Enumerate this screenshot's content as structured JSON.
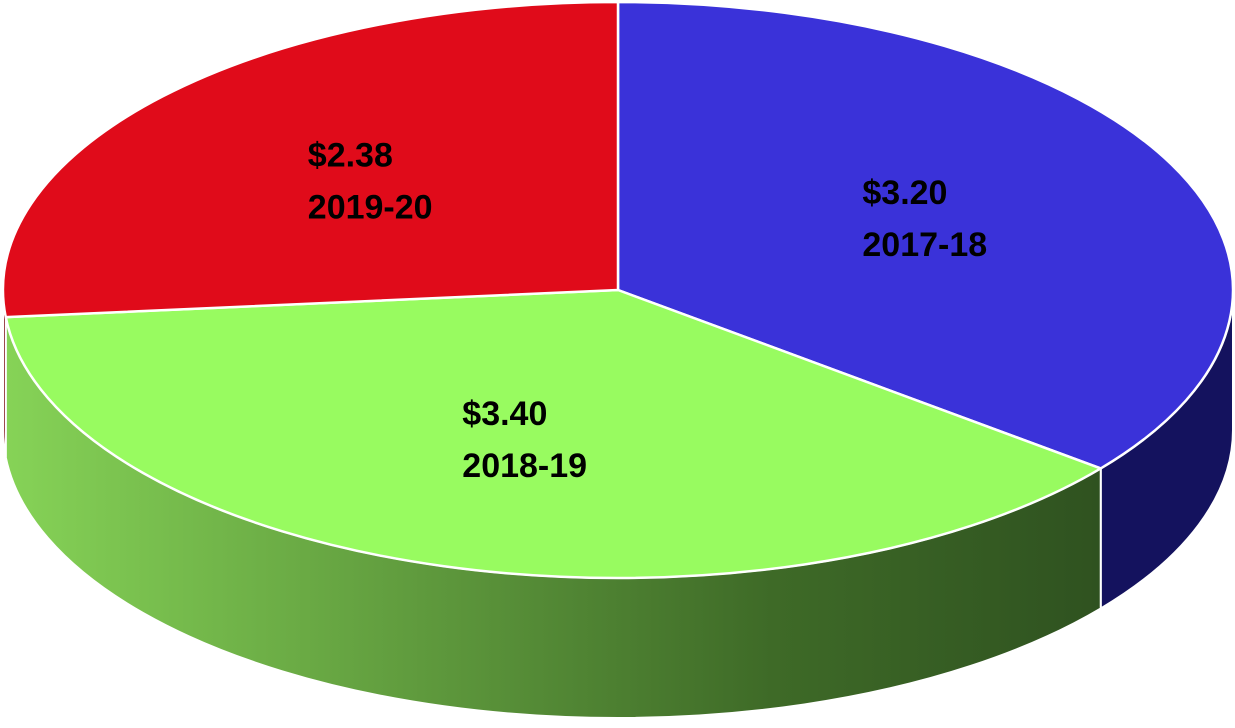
{
  "chart_data": {
    "type": "pie",
    "categories": [
      "2017-18",
      "2018-19",
      "2019-20"
    ],
    "values": [
      3.2,
      3.4,
      2.38
    ],
    "value_labels": [
      "$3.20",
      "$3.40",
      "$2.38"
    ],
    "colors": [
      "#3a32d9",
      "#98fb60",
      "#e00b1a"
    ]
  }
}
